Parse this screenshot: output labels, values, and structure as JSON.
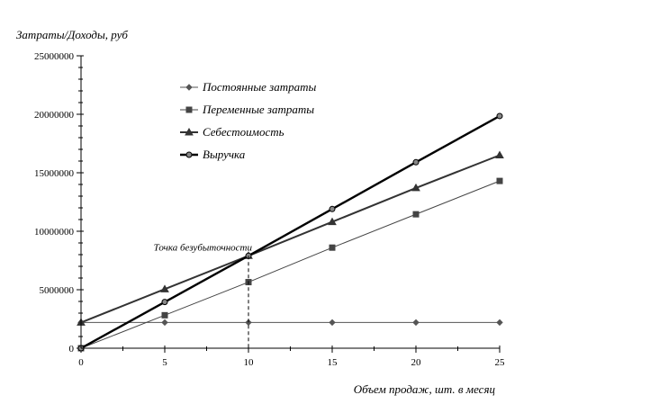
{
  "chart_data": {
    "type": "line",
    "title": "",
    "ylabel": "Затраты/Доходы, руб",
    "xlabel": "Объем продаж, шт. в месяц",
    "x": [
      0,
      5,
      10,
      15,
      20,
      25
    ],
    "xlim": [
      0,
      25
    ],
    "ylim": [
      0,
      25000000
    ],
    "x_ticks": [
      "0",
      "5",
      "10",
      "15",
      "20",
      "25"
    ],
    "y_ticks": [
      "0",
      "5000000",
      "10000000",
      "15000000",
      "20000000",
      "25000000"
    ],
    "grid": false,
    "legend_position": "top-center",
    "series": [
      {
        "name": "Постоянные затраты",
        "values": [
          2200000,
          2200000,
          2200000,
          2200000,
          2200000,
          2200000
        ],
        "marker": "diamond",
        "stroke_width": 1.0,
        "color": "#555555"
      },
      {
        "name": "Переменные затраты",
        "values": [
          0,
          2820000,
          5650000,
          8600000,
          11450000,
          14300000
        ],
        "marker": "square",
        "stroke_width": 1.0,
        "color": "#444444"
      },
      {
        "name": "Себестоимость",
        "values": [
          2200000,
          5050000,
          7900000,
          10800000,
          13700000,
          16500000
        ],
        "marker": "triangle",
        "stroke_width": 2.0,
        "color": "#333333"
      },
      {
        "name": "Выручка",
        "values": [
          0,
          3950000,
          7900000,
          11900000,
          15900000,
          19850000
        ],
        "marker": "circle",
        "stroke_width": 2.4,
        "color": "#000000"
      }
    ],
    "annotations": [
      {
        "text": "Точка безубыточности",
        "x": 10,
        "y": 7900000
      }
    ]
  }
}
